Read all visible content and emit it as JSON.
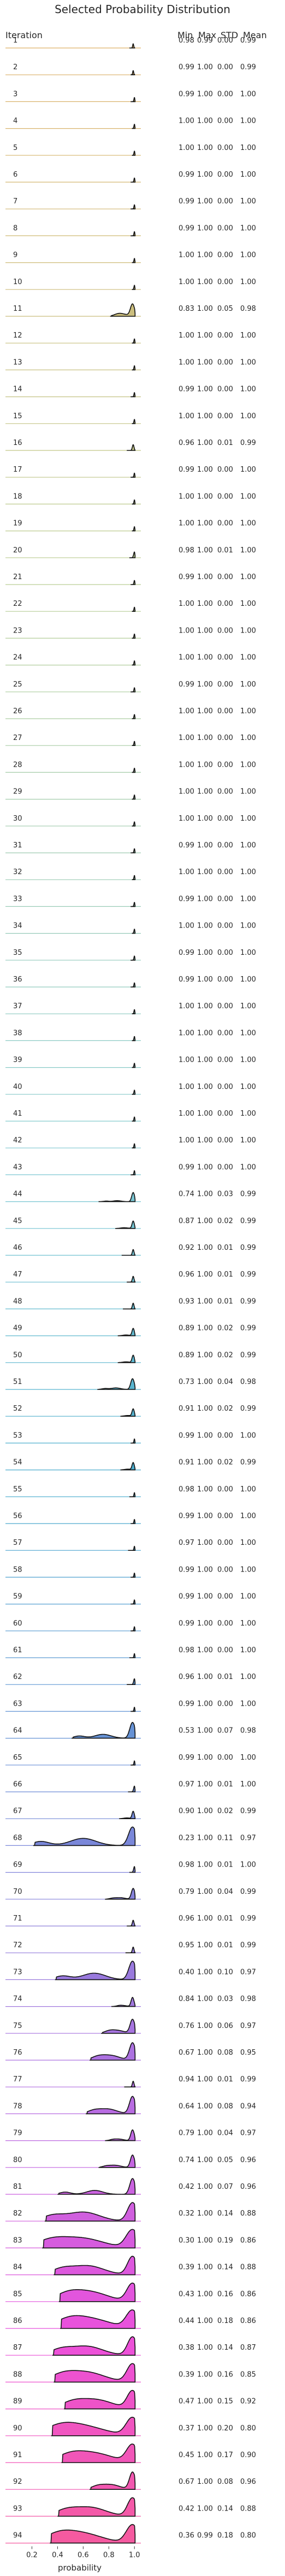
{
  "chart_data": {
    "type": "ridgeline",
    "title": "Selected Probability Distribution",
    "xlabel": "probability",
    "header": {
      "iteration": "Iteration",
      "min": "Min",
      "max": "Max",
      "std": "STD",
      "mean": "Mean"
    },
    "xlim": [
      0.1,
      1.05
    ],
    "xticks": [
      0.2,
      0.4,
      0.6,
      0.8,
      1.0
    ],
    "xtick_labels": [
      "0.2",
      "0.4",
      "0.6",
      "0.8",
      "1.0"
    ],
    "rows": [
      {
        "it": "1",
        "min": "0.98",
        "max": "0.99",
        "std": "0.00",
        "mean": "0.99"
      },
      {
        "it": "2",
        "min": "0.99",
        "max": "1.00",
        "std": "0.00",
        "mean": "0.99"
      },
      {
        "it": "3",
        "min": "0.99",
        "max": "1.00",
        "std": "0.00",
        "mean": "1.00"
      },
      {
        "it": "4",
        "min": "1.00",
        "max": "1.00",
        "std": "0.00",
        "mean": "1.00"
      },
      {
        "it": "5",
        "min": "1.00",
        "max": "1.00",
        "std": "0.00",
        "mean": "1.00"
      },
      {
        "it": "6",
        "min": "0.99",
        "max": "1.00",
        "std": "0.00",
        "mean": "1.00"
      },
      {
        "it": "7",
        "min": "0.99",
        "max": "1.00",
        "std": "0.00",
        "mean": "1.00"
      },
      {
        "it": "8",
        "min": "0.99",
        "max": "1.00",
        "std": "0.00",
        "mean": "1.00"
      },
      {
        "it": "9",
        "min": "1.00",
        "max": "1.00",
        "std": "0.00",
        "mean": "1.00"
      },
      {
        "it": "10",
        "min": "1.00",
        "max": "1.00",
        "std": "0.00",
        "mean": "1.00"
      },
      {
        "it": "11",
        "min": "0.83",
        "max": "1.00",
        "std": "0.05",
        "mean": "0.98"
      },
      {
        "it": "12",
        "min": "1.00",
        "max": "1.00",
        "std": "0.00",
        "mean": "1.00"
      },
      {
        "it": "13",
        "min": "1.00",
        "max": "1.00",
        "std": "0.00",
        "mean": "1.00"
      },
      {
        "it": "14",
        "min": "0.99",
        "max": "1.00",
        "std": "0.00",
        "mean": "1.00"
      },
      {
        "it": "15",
        "min": "1.00",
        "max": "1.00",
        "std": "0.00",
        "mean": "1.00"
      },
      {
        "it": "16",
        "min": "0.96",
        "max": "1.00",
        "std": "0.01",
        "mean": "0.99"
      },
      {
        "it": "17",
        "min": "0.99",
        "max": "1.00",
        "std": "0.00",
        "mean": "1.00"
      },
      {
        "it": "18",
        "min": "1.00",
        "max": "1.00",
        "std": "0.00",
        "mean": "1.00"
      },
      {
        "it": "19",
        "min": "1.00",
        "max": "1.00",
        "std": "0.00",
        "mean": "1.00"
      },
      {
        "it": "20",
        "min": "0.98",
        "max": "1.00",
        "std": "0.01",
        "mean": "1.00"
      },
      {
        "it": "21",
        "min": "0.99",
        "max": "1.00",
        "std": "0.00",
        "mean": "1.00"
      },
      {
        "it": "22",
        "min": "1.00",
        "max": "1.00",
        "std": "0.00",
        "mean": "1.00"
      },
      {
        "it": "23",
        "min": "1.00",
        "max": "1.00",
        "std": "0.00",
        "mean": "1.00"
      },
      {
        "it": "24",
        "min": "1.00",
        "max": "1.00",
        "std": "0.00",
        "mean": "1.00"
      },
      {
        "it": "25",
        "min": "0.99",
        "max": "1.00",
        "std": "0.00",
        "mean": "1.00"
      },
      {
        "it": "26",
        "min": "1.00",
        "max": "1.00",
        "std": "0.00",
        "mean": "1.00"
      },
      {
        "it": "27",
        "min": "1.00",
        "max": "1.00",
        "std": "0.00",
        "mean": "1.00"
      },
      {
        "it": "28",
        "min": "1.00",
        "max": "1.00",
        "std": "0.00",
        "mean": "1.00"
      },
      {
        "it": "29",
        "min": "1.00",
        "max": "1.00",
        "std": "0.00",
        "mean": "1.00"
      },
      {
        "it": "30",
        "min": "1.00",
        "max": "1.00",
        "std": "0.00",
        "mean": "1.00"
      },
      {
        "it": "31",
        "min": "0.99",
        "max": "1.00",
        "std": "0.00",
        "mean": "1.00"
      },
      {
        "it": "32",
        "min": "1.00",
        "max": "1.00",
        "std": "0.00",
        "mean": "1.00"
      },
      {
        "it": "33",
        "min": "0.99",
        "max": "1.00",
        "std": "0.00",
        "mean": "1.00"
      },
      {
        "it": "34",
        "min": "1.00",
        "max": "1.00",
        "std": "0.00",
        "mean": "1.00"
      },
      {
        "it": "35",
        "min": "0.99",
        "max": "1.00",
        "std": "0.00",
        "mean": "1.00"
      },
      {
        "it": "36",
        "min": "0.99",
        "max": "1.00",
        "std": "0.00",
        "mean": "1.00"
      },
      {
        "it": "37",
        "min": "1.00",
        "max": "1.00",
        "std": "0.00",
        "mean": "1.00"
      },
      {
        "it": "38",
        "min": "1.00",
        "max": "1.00",
        "std": "0.00",
        "mean": "1.00"
      },
      {
        "it": "39",
        "min": "1.00",
        "max": "1.00",
        "std": "0.00",
        "mean": "1.00"
      },
      {
        "it": "40",
        "min": "1.00",
        "max": "1.00",
        "std": "0.00",
        "mean": "1.00"
      },
      {
        "it": "41",
        "min": "1.00",
        "max": "1.00",
        "std": "0.00",
        "mean": "1.00"
      },
      {
        "it": "42",
        "min": "1.00",
        "max": "1.00",
        "std": "0.00",
        "mean": "1.00"
      },
      {
        "it": "43",
        "min": "0.99",
        "max": "1.00",
        "std": "0.00",
        "mean": "1.00"
      },
      {
        "it": "44",
        "min": "0.74",
        "max": "1.00",
        "std": "0.03",
        "mean": "0.99"
      },
      {
        "it": "45",
        "min": "0.87",
        "max": "1.00",
        "std": "0.02",
        "mean": "0.99"
      },
      {
        "it": "46",
        "min": "0.92",
        "max": "1.00",
        "std": "0.01",
        "mean": "0.99"
      },
      {
        "it": "47",
        "min": "0.96",
        "max": "1.00",
        "std": "0.01",
        "mean": "0.99"
      },
      {
        "it": "48",
        "min": "0.93",
        "max": "1.00",
        "std": "0.01",
        "mean": "0.99"
      },
      {
        "it": "49",
        "min": "0.89",
        "max": "1.00",
        "std": "0.02",
        "mean": "0.99"
      },
      {
        "it": "50",
        "min": "0.89",
        "max": "1.00",
        "std": "0.02",
        "mean": "0.99"
      },
      {
        "it": "51",
        "min": "0.73",
        "max": "1.00",
        "std": "0.04",
        "mean": "0.98"
      },
      {
        "it": "52",
        "min": "0.91",
        "max": "1.00",
        "std": "0.02",
        "mean": "0.99"
      },
      {
        "it": "53",
        "min": "0.99",
        "max": "1.00",
        "std": "0.00",
        "mean": "1.00"
      },
      {
        "it": "54",
        "min": "0.91",
        "max": "1.00",
        "std": "0.02",
        "mean": "0.99"
      },
      {
        "it": "55",
        "min": "0.98",
        "max": "1.00",
        "std": "0.00",
        "mean": "1.00"
      },
      {
        "it": "56",
        "min": "0.99",
        "max": "1.00",
        "std": "0.00",
        "mean": "1.00"
      },
      {
        "it": "57",
        "min": "0.97",
        "max": "1.00",
        "std": "0.00",
        "mean": "1.00"
      },
      {
        "it": "58",
        "min": "0.99",
        "max": "1.00",
        "std": "0.00",
        "mean": "1.00"
      },
      {
        "it": "59",
        "min": "0.99",
        "max": "1.00",
        "std": "0.00",
        "mean": "1.00"
      },
      {
        "it": "60",
        "min": "0.99",
        "max": "1.00",
        "std": "0.00",
        "mean": "1.00"
      },
      {
        "it": "61",
        "min": "0.98",
        "max": "1.00",
        "std": "0.00",
        "mean": "1.00"
      },
      {
        "it": "62",
        "min": "0.96",
        "max": "1.00",
        "std": "0.01",
        "mean": "1.00"
      },
      {
        "it": "63",
        "min": "0.99",
        "max": "1.00",
        "std": "0.00",
        "mean": "1.00"
      },
      {
        "it": "64",
        "min": "0.53",
        "max": "1.00",
        "std": "0.07",
        "mean": "0.98"
      },
      {
        "it": "65",
        "min": "0.99",
        "max": "1.00",
        "std": "0.00",
        "mean": "1.00"
      },
      {
        "it": "66",
        "min": "0.97",
        "max": "1.00",
        "std": "0.01",
        "mean": "1.00"
      },
      {
        "it": "67",
        "min": "0.90",
        "max": "1.00",
        "std": "0.02",
        "mean": "0.99"
      },
      {
        "it": "68",
        "min": "0.23",
        "max": "1.00",
        "std": "0.11",
        "mean": "0.97"
      },
      {
        "it": "69",
        "min": "0.98",
        "max": "1.00",
        "std": "0.01",
        "mean": "1.00"
      },
      {
        "it": "70",
        "min": "0.79",
        "max": "1.00",
        "std": "0.04",
        "mean": "0.99"
      },
      {
        "it": "71",
        "min": "0.96",
        "max": "1.00",
        "std": "0.01",
        "mean": "0.99"
      },
      {
        "it": "72",
        "min": "0.95",
        "max": "1.00",
        "std": "0.01",
        "mean": "0.99"
      },
      {
        "it": "73",
        "min": "0.40",
        "max": "1.00",
        "std": "0.10",
        "mean": "0.97"
      },
      {
        "it": "74",
        "min": "0.84",
        "max": "1.00",
        "std": "0.03",
        "mean": "0.98"
      },
      {
        "it": "75",
        "min": "0.76",
        "max": "1.00",
        "std": "0.06",
        "mean": "0.97"
      },
      {
        "it": "76",
        "min": "0.67",
        "max": "1.00",
        "std": "0.08",
        "mean": "0.95"
      },
      {
        "it": "77",
        "min": "0.94",
        "max": "1.00",
        "std": "0.01",
        "mean": "0.99"
      },
      {
        "it": "78",
        "min": "0.64",
        "max": "1.00",
        "std": "0.08",
        "mean": "0.94"
      },
      {
        "it": "79",
        "min": "0.79",
        "max": "1.00",
        "std": "0.04",
        "mean": "0.97"
      },
      {
        "it": "80",
        "min": "0.74",
        "max": "1.00",
        "std": "0.05",
        "mean": "0.96"
      },
      {
        "it": "81",
        "min": "0.42",
        "max": "1.00",
        "std": "0.07",
        "mean": "0.96"
      },
      {
        "it": "82",
        "min": "0.32",
        "max": "1.00",
        "std": "0.14",
        "mean": "0.88"
      },
      {
        "it": "83",
        "min": "0.30",
        "max": "1.00",
        "std": "0.19",
        "mean": "0.86"
      },
      {
        "it": "84",
        "min": "0.39",
        "max": "1.00",
        "std": "0.14",
        "mean": "0.88"
      },
      {
        "it": "85",
        "min": "0.43",
        "max": "1.00",
        "std": "0.16",
        "mean": "0.86"
      },
      {
        "it": "86",
        "min": "0.44",
        "max": "1.00",
        "std": "0.18",
        "mean": "0.86"
      },
      {
        "it": "87",
        "min": "0.38",
        "max": "1.00",
        "std": "0.14",
        "mean": "0.87"
      },
      {
        "it": "88",
        "min": "0.39",
        "max": "1.00",
        "std": "0.16",
        "mean": "0.85"
      },
      {
        "it": "89",
        "min": "0.47",
        "max": "1.00",
        "std": "0.15",
        "mean": "0.92"
      },
      {
        "it": "90",
        "min": "0.37",
        "max": "1.00",
        "std": "0.20",
        "mean": "0.80"
      },
      {
        "it": "91",
        "min": "0.45",
        "max": "1.00",
        "std": "0.17",
        "mean": "0.90"
      },
      {
        "it": "92",
        "min": "0.67",
        "max": "1.00",
        "std": "0.08",
        "mean": "0.96"
      },
      {
        "it": "93",
        "min": "0.42",
        "max": "1.00",
        "std": "0.14",
        "mean": "0.88"
      },
      {
        "it": "94",
        "min": "0.36",
        "max": "0.99",
        "std": "0.18",
        "mean": "0.80"
      }
    ]
  }
}
